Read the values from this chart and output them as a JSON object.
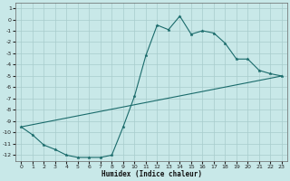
{
  "xlabel": "Humidex (Indice chaleur)",
  "background_color": "#c8e8e8",
  "grid_color": "#a8cccc",
  "line_color": "#1a6b6b",
  "xlim": [
    -0.5,
    23.5
  ],
  "ylim": [
    -12.5,
    1.5
  ],
  "yticks": [
    1,
    0,
    -1,
    -2,
    -3,
    -4,
    -5,
    -6,
    -7,
    -8,
    -9,
    -10,
    -11,
    -12
  ],
  "xticks": [
    0,
    1,
    2,
    3,
    4,
    5,
    6,
    7,
    8,
    9,
    10,
    11,
    12,
    13,
    14,
    15,
    16,
    17,
    18,
    19,
    20,
    21,
    22,
    23
  ],
  "line1_x": [
    0,
    1,
    2,
    3,
    4,
    5,
    6,
    7,
    8,
    9,
    10,
    11,
    12,
    13,
    14,
    15,
    16,
    17,
    18,
    19,
    20,
    21,
    22,
    23
  ],
  "line1_y": [
    -9.5,
    -10.2,
    -11.1,
    -11.5,
    -12.0,
    -12.2,
    -12.2,
    -12.2,
    -12.0,
    -9.5,
    -6.8,
    -3.2,
    -0.5,
    -0.9,
    0.3,
    -1.3,
    -1.0,
    -1.2,
    -2.1,
    -3.5,
    -3.5,
    -4.5,
    -4.8,
    -5.0
  ],
  "line2_x": [
    0,
    23
  ],
  "line2_y": [
    -9.5,
    -5.0
  ],
  "marker": "*",
  "markersize": 2.5,
  "linewidth": 0.8,
  "xlabel_fontsize": 5.5,
  "tick_fontsize": 4.5
}
